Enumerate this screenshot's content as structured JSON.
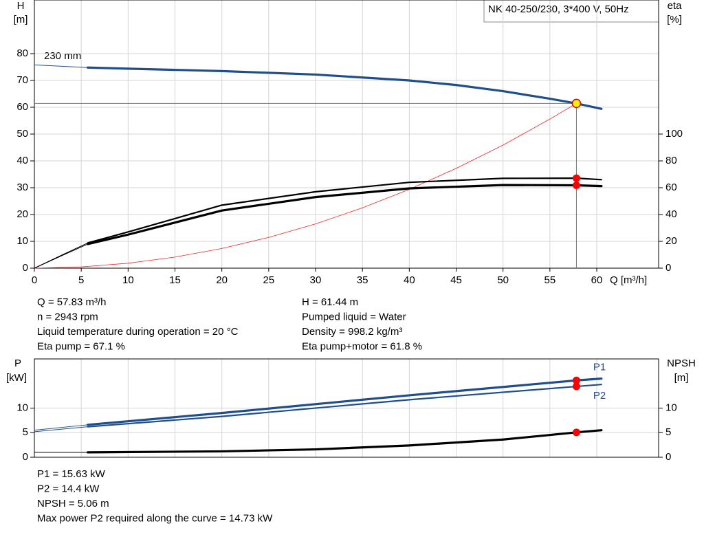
{
  "chart_data": [
    {
      "type": "line",
      "title": "NK 40-250/230, 3*400 V, 50Hz",
      "y_label": "H",
      "y_unit": "[m]",
      "y2_label": "eta",
      "y2_unit": "[%]",
      "x_label": "Q [m³/h]",
      "annotation": "230 mm",
      "xlim": [
        0,
        66.6
      ],
      "xticks": [
        0,
        5,
        10,
        15,
        20,
        25,
        30,
        35,
        40,
        45,
        50,
        55,
        60
      ],
      "ylim": [
        0,
        100
      ],
      "yticks": [
        0,
        10,
        20,
        30,
        40,
        50,
        60,
        70,
        80
      ],
      "y2lim": [
        0,
        200
      ],
      "y2ticks": [
        0,
        20,
        40,
        60,
        80,
        100
      ],
      "grid": true,
      "series": [
        {
          "color": "#1f4e8c",
          "style": "thin",
          "axis": "y",
          "x": [
            0,
            5.7
          ],
          "values": [
            75.8,
            74.8
          ]
        },
        {
          "color": "#1f4e8c",
          "style": "thick",
          "axis": "y",
          "x": [
            5.7,
            10,
            20,
            30,
            40,
            45,
            50,
            55,
            57.83,
            60.5
          ],
          "values": [
            74.8,
            74.4,
            73.5,
            72.2,
            70,
            68.3,
            66,
            63.2,
            61.44,
            59.4
          ]
        },
        {
          "color": "#ff2020",
          "style": "hair",
          "axis": "y",
          "x": [
            0,
            5,
            10,
            15,
            20,
            25,
            30,
            35,
            40,
            45,
            50,
            55,
            57.83
          ],
          "values": [
            0,
            0.46,
            1.84,
            4.13,
            7.35,
            11.48,
            16.5,
            22.5,
            29.4,
            37.2,
            45.9,
            55.6,
            61.44
          ]
        },
        {
          "color": "#000000",
          "style": "thin",
          "axis": "y2",
          "x": [
            0,
            3,
            5.7
          ],
          "values": [
            0,
            10,
            18.8
          ]
        },
        {
          "color": "#000000",
          "style": "thin",
          "axis": "y2",
          "x": [
            0,
            3,
            5.7
          ],
          "values": [
            0,
            9.5,
            18
          ]
        },
        {
          "color": "#000000",
          "style": "medium",
          "axis": "y2",
          "x": [
            5.7,
            10,
            20,
            30,
            40,
            50,
            57.83,
            60.5
          ],
          "values": [
            18.8,
            27,
            47,
            57,
            64,
            67,
            67.1,
            66
          ]
        },
        {
          "color": "#000000",
          "style": "thick",
          "axis": "y2",
          "x": [
            5.7,
            10,
            20,
            30,
            40,
            50,
            57.83,
            60.5
          ],
          "values": [
            18,
            25,
            43,
            53,
            59.5,
            62,
            61.8,
            61.2
          ]
        }
      ],
      "markers": [
        {
          "x": 57.83,
          "y": 61.44,
          "color": "#ffee00",
          "axis": "y"
        },
        {
          "x": 57.83,
          "y": 67.1,
          "color": "#ff0000",
          "axis": "y2"
        },
        {
          "x": 57.83,
          "y": 61.8,
          "color": "#ff0000",
          "axis": "y2"
        }
      ]
    },
    {
      "type": "line",
      "y_label": "P",
      "y_unit": "[kW]",
      "y2_label": "NPSH",
      "y2_unit": "[m]",
      "xlim": [
        0,
        66.6
      ],
      "ylim": [
        0,
        20
      ],
      "yticks": [
        0,
        5,
        10
      ],
      "y2lim": [
        0,
        20
      ],
      "y2ticks": [
        0,
        5,
        10
      ],
      "grid": true,
      "series": [
        {
          "color": "#1f4e8c",
          "style": "thin",
          "axis": "y",
          "x": [
            0,
            5.7
          ],
          "values": [
            5.5,
            6.6
          ]
        },
        {
          "color": "#1f4e8c",
          "style": "thin",
          "axis": "y",
          "x": [
            0,
            5.7
          ],
          "values": [
            5.2,
            6.2
          ]
        },
        {
          "name": "P1",
          "color": "#1f4e8c",
          "style": "thick",
          "axis": "y",
          "x": [
            5.7,
            20,
            40,
            57.83,
            60.5
          ],
          "values": [
            6.6,
            9,
            12.6,
            15.63,
            16
          ]
        },
        {
          "name": "P2",
          "color": "#1f4e8c",
          "style": "medium",
          "axis": "y",
          "x": [
            5.7,
            20,
            40,
            57.83,
            60.5
          ],
          "values": [
            6.2,
            8.3,
            11.7,
            14.4,
            14.8
          ]
        },
        {
          "color": "#000000",
          "style": "thin",
          "axis": "y2",
          "x": [
            0,
            5.7
          ],
          "values": [
            1,
            1
          ]
        },
        {
          "color": "#000000",
          "style": "thick",
          "axis": "y2",
          "x": [
            5.7,
            20,
            30,
            40,
            50,
            57.83,
            60.5
          ],
          "values": [
            1,
            1.2,
            1.6,
            2.4,
            3.6,
            5.06,
            5.5
          ]
        }
      ],
      "markers": [
        {
          "x": 57.83,
          "y": 15.63,
          "color": "#ff0000",
          "axis": "y"
        },
        {
          "x": 57.83,
          "y": 14.4,
          "color": "#ff0000",
          "axis": "y"
        },
        {
          "x": 57.83,
          "y": 5.06,
          "color": "#ff0000",
          "axis": "y2"
        }
      ]
    }
  ],
  "info_top_left": [
    "Q = 57.83 m³/h",
    "n = 2943 rpm",
    "Liquid temperature during operation = 20 °C",
    "Eta pump = 67.1 %"
  ],
  "info_top_right": [
    "H = 61.44 m",
    "Pumped liquid = Water",
    "Density = 998.2 kg/m³",
    "Eta pump+motor = 61.8 %"
  ],
  "info_bottom": [
    "P1 = 15.63 kW",
    "P2 = 14.4 kW",
    "NPSH = 5.06 m",
    "Max power P2 required along the curve = 14.73 kW"
  ]
}
